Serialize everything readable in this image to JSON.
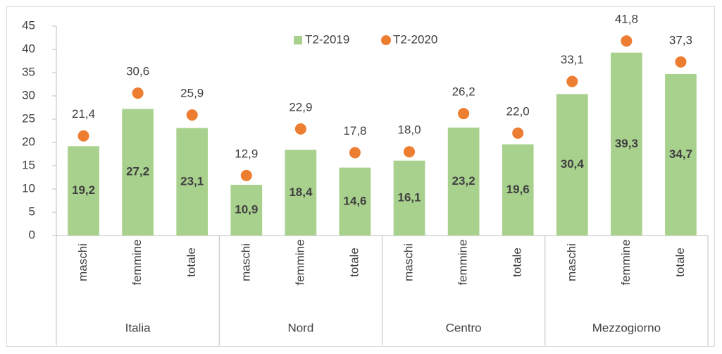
{
  "chart_data": {
    "type": "bar",
    "categories": [
      "maschi",
      "femmine",
      "totale",
      "maschi",
      "femmine",
      "totale",
      "maschi",
      "femmine",
      "totale",
      "maschi",
      "femmine",
      "totale"
    ],
    "groups": [
      "Italia",
      "Nord",
      "Centro",
      "Mezzogiorno"
    ],
    "series": [
      {
        "name": "T2-2019",
        "type": "bar",
        "color": "#a9d18e",
        "values": [
          19.2,
          27.2,
          23.1,
          10.9,
          18.4,
          14.6,
          16.1,
          23.2,
          19.6,
          30.4,
          39.3,
          34.7
        ],
        "value_labels": [
          "19,2",
          "27,2",
          "23,1",
          "10,9",
          "18,4",
          "14,6",
          "16,1",
          "23,2",
          "19,6",
          "30,4",
          "39,3",
          "34,7"
        ]
      },
      {
        "name": "T2-2020",
        "type": "scatter",
        "color": "#ed7d31",
        "values": [
          21.4,
          30.6,
          25.9,
          12.9,
          22.9,
          17.8,
          18.0,
          26.2,
          22.0,
          33.1,
          41.8,
          37.3
        ],
        "value_labels": [
          "21,4",
          "30,6",
          "25,9",
          "12,9",
          "22,9",
          "17,8",
          "18,0",
          "26,2",
          "22,0",
          "33,1",
          "41,8",
          "37,3"
        ]
      }
    ],
    "ylim": [
      0,
      45
    ],
    "yticks": [
      0,
      5,
      10,
      15,
      20,
      25,
      30,
      35,
      40,
      45
    ],
    "legend": "top"
  }
}
